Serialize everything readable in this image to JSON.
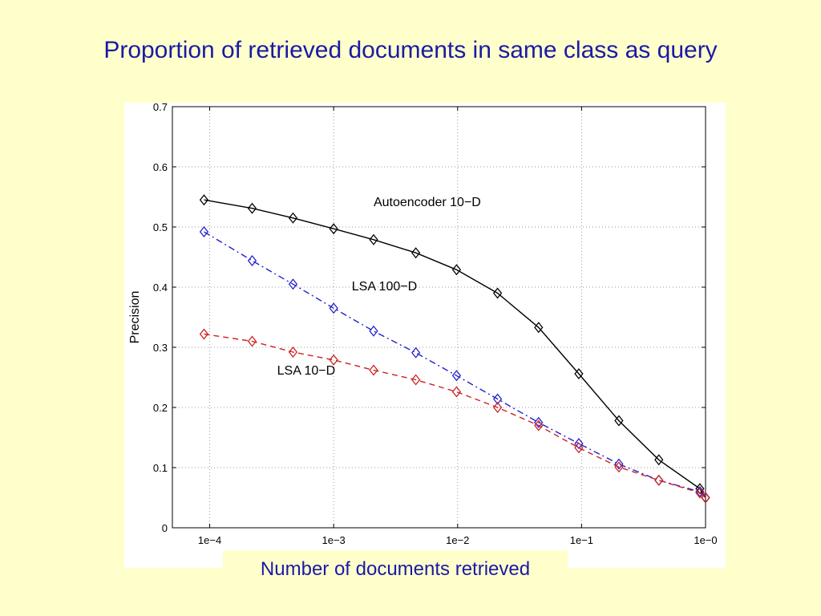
{
  "slide": {
    "title": "Proportion of retrieved documents in same class as query",
    "caption": "Number of documents retrieved"
  },
  "chart_data": {
    "type": "line",
    "title": "",
    "xlabel": "Number of documents retrieved",
    "ylabel": "Precision",
    "xscale": "log",
    "xlim": [
      5e-05,
      1.0
    ],
    "ylim": [
      0,
      0.7
    ],
    "grid": true,
    "x_ticks": [
      {
        "value": 0.0001,
        "label": "1e−4"
      },
      {
        "value": 0.001,
        "label": "1e−3"
      },
      {
        "value": 0.01,
        "label": "1e−2"
      },
      {
        "value": 0.1,
        "label": "1e−1"
      },
      {
        "value": 1.0,
        "label": "1e−0"
      }
    ],
    "y_ticks": [
      {
        "value": 0,
        "label": "0"
      },
      {
        "value": 0.1,
        "label": "0.1"
      },
      {
        "value": 0.2,
        "label": "0.2"
      },
      {
        "value": 0.3,
        "label": "0.3"
      },
      {
        "value": 0.4,
        "label": "0.4"
      },
      {
        "value": 0.5,
        "label": "0.5"
      },
      {
        "value": 0.6,
        "label": "0.6"
      },
      {
        "value": 0.7,
        "label": "0.7"
      }
    ],
    "x": [
      9e-05,
      0.00022,
      0.00047,
      0.001,
      0.0021,
      0.0046,
      0.0098,
      0.021,
      0.045,
      0.095,
      0.2,
      0.42,
      0.9,
      1.0
    ],
    "series": [
      {
        "name": "Autoencoder 10−D",
        "color": "#000000",
        "dash": "solid",
        "values": [
          0.545,
          0.531,
          0.515,
          0.497,
          0.479,
          0.457,
          0.429,
          0.39,
          0.333,
          0.256,
          0.178,
          0.113,
          0.065,
          0.05
        ]
      },
      {
        "name": "LSA 100−D",
        "color": "#2222cc",
        "dash": "dashdot",
        "values": [
          0.492,
          0.444,
          0.405,
          0.365,
          0.327,
          0.291,
          0.253,
          0.214,
          0.175,
          0.14,
          0.106,
          0.079,
          0.06,
          0.05
        ]
      },
      {
        "name": "LSA 10−D",
        "color": "#cc2222",
        "dash": "dashed",
        "values": [
          0.322,
          0.31,
          0.292,
          0.279,
          0.262,
          0.246,
          0.226,
          0.2,
          0.17,
          0.133,
          0.101,
          0.079,
          0.058,
          0.05
        ]
      }
    ],
    "series_label_anchors": [
      {
        "x": 0.0021,
        "y": 0.535
      },
      {
        "x": 0.0014,
        "y": 0.395
      },
      {
        "x": 0.00035,
        "y": 0.255
      }
    ]
  }
}
